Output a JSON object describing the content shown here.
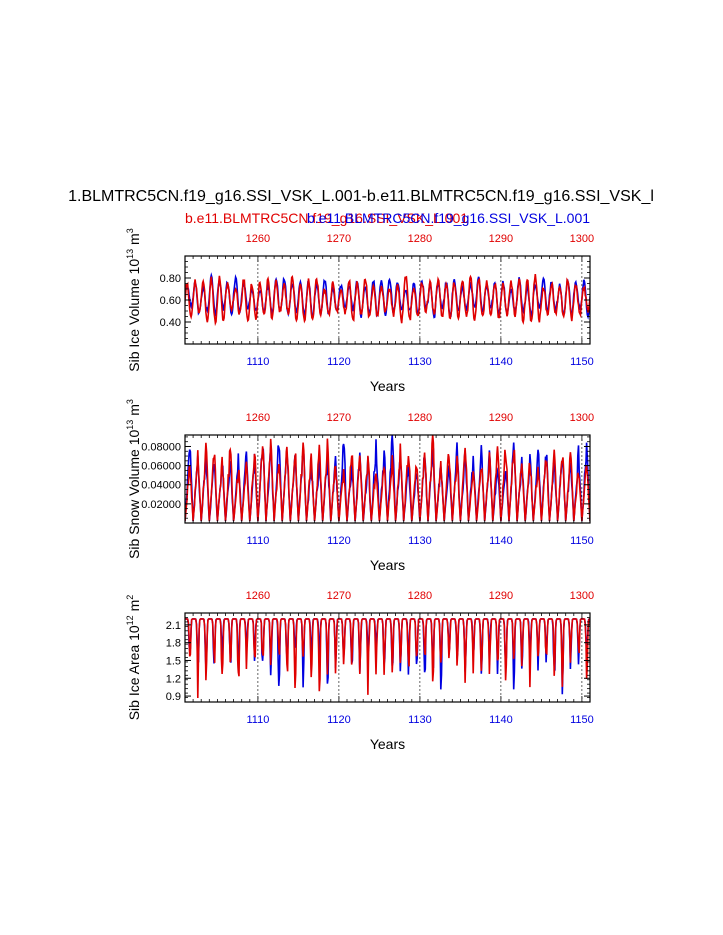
{
  "title": "1.BLMTRC5CN.f19_g16.SSI_VSK_L.001-b.e11.BLMTRC5CN.f19_g16.SSI_VSK_l",
  "legend": {
    "red_label": "b.e11.BLMTRC5CN.f19_g16.SSI_VSK_L.001",
    "blue_label": "b.e11.BLMTRC5CN.f19_g16.SSI_VSK_L.001",
    "red_color": "#e00000",
    "blue_color": "#0000e0"
  },
  "chart_data": [
    {
      "type": "line",
      "name": "ice-volume",
      "ylabel": "Sib Ice Volume",
      "yunit_base": "10",
      "yunit_exp": "13",
      "yunit_tail": "m",
      "yunit_tail_exp": "3",
      "xlabel": "Years",
      "xlim_bottom": [
        1101,
        1151
      ],
      "xlim_top": [
        1251,
        1301
      ],
      "xticks_bottom": [
        1110,
        1120,
        1130,
        1140,
        1150
      ],
      "xticks_top": [
        1260,
        1270,
        1280,
        1290,
        1300
      ],
      "ylim": [
        0.2,
        1.0
      ],
      "yticks": [
        0.4,
        0.6,
        0.8
      ],
      "ytick_labels": [
        "0.40",
        "0.60",
        "0.80"
      ],
      "series": [
        {
          "name": "blue",
          "axis": "bottom",
          "mean": 0.62,
          "amp": 0.13,
          "seed": 3,
          "shape": "sine"
        },
        {
          "name": "red",
          "axis": "top",
          "mean": 0.6,
          "amp": 0.16,
          "seed": 11,
          "shape": "sine"
        }
      ]
    },
    {
      "type": "line",
      "name": "snow-volume",
      "ylabel": "Sib Snow Volume",
      "yunit_base": "10",
      "yunit_exp": "13",
      "yunit_tail": "m",
      "yunit_tail_exp": "3",
      "xlabel": "Years",
      "xlim_bottom": [
        1101,
        1151
      ],
      "xlim_top": [
        1251,
        1301
      ],
      "xticks_bottom": [
        1110,
        1120,
        1130,
        1140,
        1150
      ],
      "xticks_top": [
        1260,
        1270,
        1280,
        1290,
        1300
      ],
      "ylim": [
        0.0,
        0.092
      ],
      "yticks": [
        0.02,
        0.04,
        0.06,
        0.08
      ],
      "ytick_labels": [
        "0.02000",
        "0.04000",
        "0.06000",
        "0.08000"
      ],
      "series": [
        {
          "name": "blue",
          "axis": "bottom",
          "mean": 0.037,
          "amp": 0.036,
          "seed": 5,
          "shape": "snow"
        },
        {
          "name": "red",
          "axis": "top",
          "mean": 0.036,
          "amp": 0.038,
          "seed": 17,
          "shape": "snow"
        }
      ]
    },
    {
      "type": "line",
      "name": "ice-area",
      "ylabel": "Sib Ice Area",
      "yunit_base": "10",
      "yunit_exp": "12",
      "yunit_tail": "m",
      "yunit_tail_exp": "2",
      "xlabel": "Years",
      "xlim_bottom": [
        1101,
        1151
      ],
      "xlim_top": [
        1251,
        1301
      ],
      "xticks_bottom": [
        1110,
        1120,
        1130,
        1140,
        1150
      ],
      "xticks_top": [
        1260,
        1270,
        1280,
        1290,
        1300
      ],
      "ylim": [
        0.8,
        2.3
      ],
      "yticks": [
        0.9,
        1.2,
        1.5,
        1.8,
        2.1
      ],
      "ytick_labels": [
        "0.9",
        "1.2",
        "1.5",
        "1.8",
        "2.1"
      ],
      "series": [
        {
          "name": "blue",
          "axis": "bottom",
          "mean": 2.2,
          "amp": 0.7,
          "seed": 7,
          "shape": "area"
        },
        {
          "name": "red",
          "axis": "top",
          "mean": 2.2,
          "amp": 0.75,
          "seed": 23,
          "shape": "area"
        }
      ]
    }
  ]
}
